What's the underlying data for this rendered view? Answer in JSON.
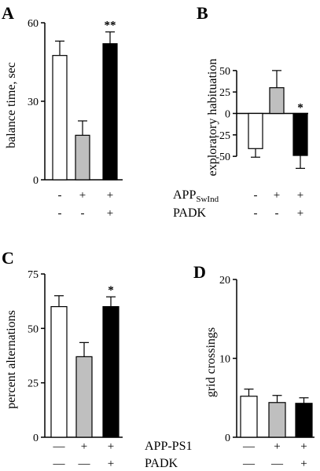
{
  "chart_data": [
    {
      "panel": "A",
      "type": "bar",
      "ylabel": "balance time, sec",
      "ylim": [
        0,
        60
      ],
      "yticks": [
        0,
        30,
        60
      ],
      "values": [
        47.5,
        17,
        52
      ],
      "errors": [
        5.5,
        5.5,
        4.5
      ],
      "fills": [
        "#ffffff",
        "#bfbfbf",
        "#000000"
      ],
      "marks": [
        "",
        "",
        "**"
      ],
      "rows": [
        {
          "name": "APPSwInd",
          "values": [
            "-",
            "+",
            "+"
          ]
        },
        {
          "name": "PADK",
          "values": [
            "-",
            "-",
            "+"
          ]
        }
      ]
    },
    {
      "panel": "B",
      "type": "bar",
      "ylabel": "exploratory habituation",
      "ylim": [
        -70,
        70
      ],
      "yticks": [
        -50,
        -25,
        0,
        25,
        50
      ],
      "values": [
        -41,
        30,
        -49
      ],
      "errors": [
        10,
        20,
        15
      ],
      "fills": [
        "#ffffff",
        "#bfbfbf",
        "#000000"
      ],
      "marks": [
        "",
        "",
        "*"
      ],
      "rows": [
        {
          "name": "",
          "values": [
            "-",
            "+",
            "+"
          ]
        },
        {
          "name": "",
          "values": [
            "-",
            "-",
            "+"
          ]
        }
      ]
    },
    {
      "panel": "C",
      "type": "bar",
      "ylabel": "percent alternations",
      "ylim": [
        0,
        75
      ],
      "yticks": [
        0,
        25,
        50,
        75
      ],
      "values": [
        60,
        37,
        60
      ],
      "errors": [
        5,
        6.5,
        4.5
      ],
      "fills": [
        "#ffffff",
        "#bfbfbf",
        "#000000"
      ],
      "marks": [
        "",
        "",
        "*"
      ],
      "rows": [
        {
          "name": "APP-PS1",
          "values": [
            "—",
            "+",
            "+"
          ]
        },
        {
          "name": "PADK",
          "values": [
            "—",
            "—",
            "+"
          ]
        }
      ]
    },
    {
      "panel": "D",
      "type": "bar",
      "ylabel": "grid crossings",
      "ylim": [
        0,
        20
      ],
      "yticks": [
        0,
        10,
        20
      ],
      "values": [
        5.2,
        4.4,
        4.3
      ],
      "errors": [
        0.9,
        0.9,
        0.7
      ],
      "fills": [
        "#ffffff",
        "#bfbfbf",
        "#000000"
      ],
      "marks": [
        "",
        "",
        ""
      ],
      "rows": [
        {
          "name": "",
          "values": [
            "—",
            "+",
            "+"
          ]
        },
        {
          "name": "",
          "values": [
            "—",
            "—",
            "+"
          ]
        }
      ]
    }
  ],
  "labels": {
    "A": "A",
    "B": "B",
    "C": "C",
    "D": "D",
    "app_swind_main": "APP",
    "app_swind_sub": "SwInd",
    "padk_top": "PADK",
    "app_ps1": "APP-PS1",
    "padk_bottom": "PADK"
  }
}
